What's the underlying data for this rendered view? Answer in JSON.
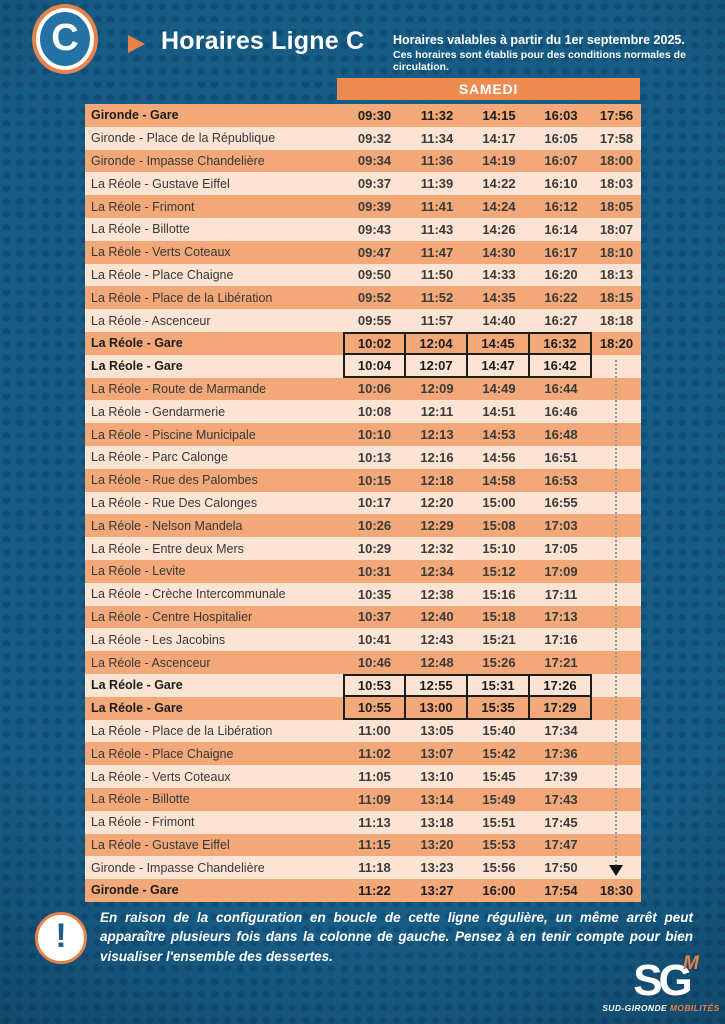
{
  "header": {
    "line_badge": "C",
    "title": "Horaires Ligne C",
    "validity_line1": "Horaires valables à partir du 1er septembre 2025.",
    "validity_line2": "Ces horaires sont établis pour des conditions normales de circulation."
  },
  "day_header": "SAMEDI",
  "timetable": {
    "rows": [
      {
        "stop": "Gironde - Gare",
        "bold": true,
        "times": [
          "09:30",
          "11:32",
          "14:15",
          "16:03",
          "17:56"
        ]
      },
      {
        "stop": "Gironde - Place de la République",
        "times": [
          "09:32",
          "11:34",
          "14:17",
          "16:05",
          "17:58"
        ]
      },
      {
        "stop": "Gironde - Impasse Chandelière",
        "times": [
          "09:34",
          "11:36",
          "14:19",
          "16:07",
          "18:00"
        ]
      },
      {
        "stop": "La Réole - Gustave Eiffel",
        "times": [
          "09:37",
          "11:39",
          "14:22",
          "16:10",
          "18:03"
        ]
      },
      {
        "stop": "La Réole - Frimont",
        "times": [
          "09:39",
          "11:41",
          "14:24",
          "16:12",
          "18:05"
        ]
      },
      {
        "stop": "La Réole - Billotte",
        "times": [
          "09:43",
          "11:43",
          "14:26",
          "16:14",
          "18:07"
        ]
      },
      {
        "stop": "La Réole - Verts Coteaux",
        "times": [
          "09:47",
          "11:47",
          "14:30",
          "16:17",
          "18:10"
        ]
      },
      {
        "stop": "La Réole - Place Chaigne",
        "times": [
          "09:50",
          "11:50",
          "14:33",
          "16:20",
          "18:13"
        ]
      },
      {
        "stop": "La Réole - Place de la Libération",
        "times": [
          "09:52",
          "11:52",
          "14:35",
          "16:22",
          "18:15"
        ]
      },
      {
        "stop": "La Réole - Ascenceur",
        "times": [
          "09:55",
          "11:57",
          "14:40",
          "16:27",
          "18:18"
        ]
      },
      {
        "stop": "La Réole - Gare",
        "bold": true,
        "boxed_cols": [
          0,
          1,
          2,
          3
        ],
        "times": [
          "10:02",
          "12:04",
          "14:45",
          "16:32",
          "18:20"
        ]
      },
      {
        "stop": "La Réole - Gare",
        "bold": true,
        "boxed_cols": [
          0,
          1,
          2,
          3
        ],
        "box_continues": true,
        "times": [
          "10:04",
          "12:07",
          "14:47",
          "16:42",
          ""
        ]
      },
      {
        "stop": "La Réole - Route de Marmande",
        "times": [
          "10:06",
          "12:09",
          "14:49",
          "16:44",
          ""
        ]
      },
      {
        "stop": "La Réole - Gendarmerie",
        "times": [
          "10:08",
          "12:11",
          "14:51",
          "16:46",
          ""
        ]
      },
      {
        "stop": "La Réole - Piscine Municipale",
        "times": [
          "10:10",
          "12:13",
          "14:53",
          "16:48",
          ""
        ]
      },
      {
        "stop": "La Réole - Parc Calonge",
        "times": [
          "10:13",
          "12:16",
          "14:56",
          "16:51",
          ""
        ]
      },
      {
        "stop": "La Réole - Rue des Palombes",
        "times": [
          "10:15",
          "12:18",
          "14:58",
          "16:53",
          ""
        ]
      },
      {
        "stop": "La Réole - Rue Des Calonges",
        "times": [
          "10:17",
          "12:20",
          "15:00",
          "16:55",
          ""
        ]
      },
      {
        "stop": "La Réole - Nelson Mandela",
        "times": [
          "10:26",
          "12:29",
          "15:08",
          "17:03",
          ""
        ]
      },
      {
        "stop": "La Réole - Entre deux Mers",
        "times": [
          "10:29",
          "12:32",
          "15:10",
          "17:05",
          ""
        ]
      },
      {
        "stop": "La Réole - Levite",
        "times": [
          "10:31",
          "12:34",
          "15:12",
          "17:09",
          ""
        ]
      },
      {
        "stop": "La Réole - Crèche Intercommunale",
        "times": [
          "10:35",
          "12:38",
          "15:16",
          "17:11",
          ""
        ]
      },
      {
        "stop": "La Réole - Centre Hospitalier",
        "times": [
          "10:37",
          "12:40",
          "15:18",
          "17:13",
          ""
        ]
      },
      {
        "stop": "La Réole - Les Jacobins",
        "times": [
          "10:41",
          "12:43",
          "15:21",
          "17:16",
          ""
        ]
      },
      {
        "stop": "La Réole - Ascenceur",
        "times": [
          "10:46",
          "12:48",
          "15:26",
          "17:21",
          ""
        ]
      },
      {
        "stop": "La Réole - Gare",
        "bold": true,
        "boxed_cols": [
          0,
          1,
          2,
          3
        ],
        "times": [
          "10:53",
          "12:55",
          "15:31",
          "17:26",
          ""
        ]
      },
      {
        "stop": "La Réole - Gare",
        "bold": true,
        "boxed_cols": [
          0,
          1,
          2,
          3
        ],
        "box_continues": true,
        "times": [
          "10:55",
          "13:00",
          "15:35",
          "17:29",
          ""
        ]
      },
      {
        "stop": "La Réole - Place de la Libération",
        "times": [
          "11:00",
          "13:05",
          "15:40",
          "17:34",
          ""
        ]
      },
      {
        "stop": "La Réole - Place Chaigne",
        "times": [
          "11:02",
          "13:07",
          "15:42",
          "17:36",
          ""
        ]
      },
      {
        "stop": "La Réole - Verts Coteaux",
        "times": [
          "11:05",
          "13:10",
          "15:45",
          "17:39",
          ""
        ]
      },
      {
        "stop": "La Réole - Billotte",
        "times": [
          "11:09",
          "13:14",
          "15:49",
          "17:43",
          ""
        ]
      },
      {
        "stop": "La Réole - Frimont",
        "times": [
          "11:13",
          "13:18",
          "15:51",
          "17:45",
          ""
        ]
      },
      {
        "stop": "La Réole - Gustave Eiffel",
        "times": [
          "11:15",
          "13:20",
          "15:53",
          "17:47",
          ""
        ]
      },
      {
        "stop": "Gironde - Impasse Chandelière",
        "times": [
          "11:18",
          "13:23",
          "15:56",
          "17:50",
          ""
        ]
      },
      {
        "stop": "Gironde - Gare",
        "bold": true,
        "times": [
          "11:22",
          "13:27",
          "16:00",
          "17:54",
          "18:30"
        ]
      }
    ]
  },
  "footer": {
    "warning_mark": "!",
    "note": "En raison de la configuration en boucle de cette ligne régulière, un même arrêt peut apparaître plusieurs fois dans la colonne de gauche. Pensez à en tenir compte pour bien visualiser l'ensemble des dessertes.",
    "logo": {
      "main": "SG",
      "m": "M",
      "brand1": "SUD-GIRONDE",
      "brand2": "MOBILITÉS"
    }
  },
  "colors": {
    "accent_orange": "#ed8b51",
    "row_dark": "#f2a878",
    "row_light": "#fbe4d4",
    "background_blue": "#175c85",
    "badge_blue": "#2573a5"
  }
}
